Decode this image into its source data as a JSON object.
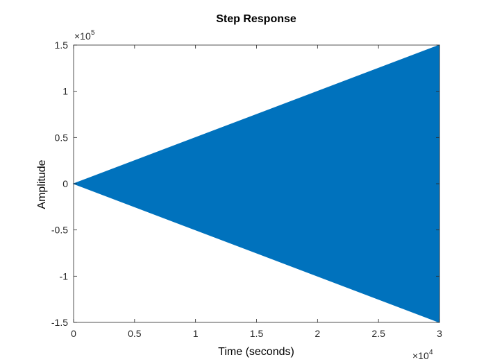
{
  "chart_data": {
    "type": "area",
    "title": "Step Response",
    "xlabel": "Time (seconds)",
    "ylabel": "Amplitude",
    "xlim": [
      0,
      30000
    ],
    "ylim": [
      -150000,
      150000
    ],
    "x_exponent": {
      "base": "×10",
      "power": "4"
    },
    "y_exponent": {
      "base": "×10",
      "power": "5"
    },
    "x_ticks": [
      0,
      5000,
      10000,
      15000,
      20000,
      25000,
      30000
    ],
    "x_tick_labels": [
      "0",
      "0.5",
      "1",
      "1.5",
      "2",
      "2.5",
      "3"
    ],
    "y_ticks": [
      -150000,
      -100000,
      -50000,
      0,
      50000,
      100000,
      150000
    ],
    "y_tick_labels": [
      "-1.5",
      "-1",
      "-0.5",
      "0",
      "0.5",
      "1",
      "1.5"
    ],
    "grid": false,
    "series": [
      {
        "color": "#0072bd",
        "x": [
          0,
          30000
        ],
        "upper": [
          0,
          150000
        ],
        "lower": [
          0,
          -150000
        ]
      }
    ]
  }
}
